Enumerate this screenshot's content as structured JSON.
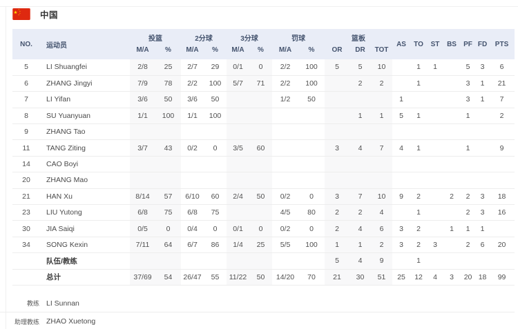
{
  "team": {
    "name": "中国"
  },
  "colors": {
    "flag_red": "#de2910",
    "flag_yellow": "#ffde00",
    "header_bg": "#e9edf7",
    "header_text": "#44536e",
    "stripe_gray": "#f8f8f9"
  },
  "table": {
    "headers": {
      "no": "NO.",
      "player": "运动员",
      "groups": [
        {
          "label": "投篮",
          "cols": [
            "M/A",
            "%"
          ]
        },
        {
          "label": "2分球",
          "cols": [
            "M/A",
            "%"
          ]
        },
        {
          "label": "3分球",
          "cols": [
            "M/A",
            "%"
          ]
        },
        {
          "label": "罚球",
          "cols": [
            "M/A",
            "%"
          ]
        },
        {
          "label": "篮板",
          "cols": [
            "OR",
            "DR",
            "TOT"
          ]
        }
      ],
      "stats": [
        "AS",
        "TO",
        "ST",
        "BS",
        "PF",
        "FD",
        "PTS"
      ]
    },
    "rows": [
      {
        "no": "5",
        "name": "LI Shuangfei",
        "cells": [
          "2/8",
          "25",
          "2/7",
          "29",
          "0/1",
          "0",
          "2/2",
          "100",
          "5",
          "5",
          "10",
          "",
          "1",
          "1",
          "",
          "5",
          "3",
          "6"
        ]
      },
      {
        "no": "6",
        "name": "ZHANG Jingyi",
        "cells": [
          "7/9",
          "78",
          "2/2",
          "100",
          "5/7",
          "71",
          "2/2",
          "100",
          "",
          "2",
          "2",
          "",
          "1",
          "",
          "",
          "3",
          "1",
          "21"
        ]
      },
      {
        "no": "7",
        "name": "LI Yifan",
        "cells": [
          "3/6",
          "50",
          "3/6",
          "50",
          "",
          "",
          "1/2",
          "50",
          "",
          "",
          "",
          "1",
          "",
          "",
          "",
          "3",
          "1",
          "7"
        ]
      },
      {
        "no": "8",
        "name": "SU Yuanyuan",
        "cells": [
          "1/1",
          "100",
          "1/1",
          "100",
          "",
          "",
          "",
          "",
          "",
          "1",
          "1",
          "5",
          "1",
          "",
          "",
          "1",
          "",
          "2"
        ]
      },
      {
        "no": "9",
        "name": "ZHANG Tao",
        "cells": [
          "",
          "",
          "",
          "",
          "",
          "",
          "",
          "",
          "",
          "",
          "",
          "",
          "",
          "",
          "",
          "",
          "",
          ""
        ]
      },
      {
        "no": "11",
        "name": "TANG Ziting",
        "cells": [
          "3/7",
          "43",
          "0/2",
          "0",
          "3/5",
          "60",
          "",
          "",
          "3",
          "4",
          "7",
          "4",
          "1",
          "",
          "",
          "1",
          "",
          "9"
        ]
      },
      {
        "no": "14",
        "name": "CAO Boyi",
        "cells": [
          "",
          "",
          "",
          "",
          "",
          "",
          "",
          "",
          "",
          "",
          "",
          "",
          "",
          "",
          "",
          "",
          "",
          ""
        ]
      },
      {
        "no": "20",
        "name": "ZHANG Mao",
        "cells": [
          "",
          "",
          "",
          "",
          "",
          "",
          "",
          "",
          "",
          "",
          "",
          "",
          "",
          "",
          "",
          "",
          "",
          ""
        ]
      },
      {
        "no": "21",
        "name": "HAN Xu",
        "cells": [
          "8/14",
          "57",
          "6/10",
          "60",
          "2/4",
          "50",
          "0/2",
          "0",
          "3",
          "7",
          "10",
          "9",
          "2",
          "",
          "2",
          "2",
          "3",
          "18"
        ]
      },
      {
        "no": "23",
        "name": "LIU Yutong",
        "cells": [
          "6/8",
          "75",
          "6/8",
          "75",
          "",
          "",
          "4/5",
          "80",
          "2",
          "2",
          "4",
          "",
          "1",
          "",
          "",
          "2",
          "3",
          "16"
        ]
      },
      {
        "no": "30",
        "name": "JIA Saiqi",
        "cells": [
          "0/5",
          "0",
          "0/4",
          "0",
          "0/1",
          "0",
          "0/2",
          "0",
          "2",
          "4",
          "6",
          "3",
          "2",
          "",
          "1",
          "1",
          "1",
          ""
        ]
      },
      {
        "no": "34",
        "name": "SONG Kexin",
        "cells": [
          "7/11",
          "64",
          "6/7",
          "86",
          "1/4",
          "25",
          "5/5",
          "100",
          "1",
          "1",
          "2",
          "3",
          "2",
          "3",
          "",
          "2",
          "6",
          "20"
        ]
      }
    ],
    "team_row": {
      "label": "队伍/教练",
      "cells": [
        "",
        "",
        "",
        "",
        "",
        "",
        "",
        "",
        "5",
        "4",
        "9",
        "",
        "1",
        "",
        "",
        "",
        "",
        ""
      ]
    },
    "total_row": {
      "label": "总计",
      "cells": [
        "37/69",
        "54",
        "26/47",
        "55",
        "11/22",
        "50",
        "14/20",
        "70",
        "21",
        "30",
        "51",
        "25",
        "12",
        "4",
        "3",
        "20",
        "18",
        "99"
      ]
    }
  },
  "footer": {
    "coach_label": "教练",
    "coach_name": "LI Sunnan",
    "assistant_label": "助理教练",
    "assistant_name": "ZHAO Xuetong"
  }
}
